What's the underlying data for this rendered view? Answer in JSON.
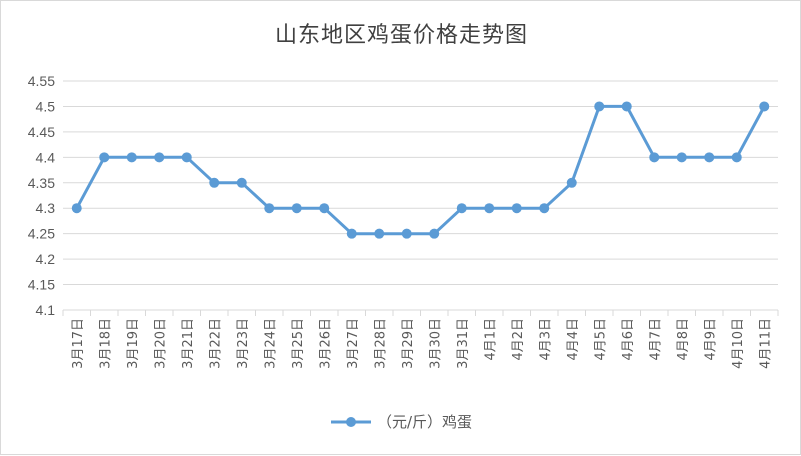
{
  "chart_data": {
    "type": "line",
    "title": "山东地区鸡蛋价格走势图",
    "categories": [
      "3月17日",
      "3月18日",
      "3月19日",
      "3月20日",
      "3月21日",
      "3月22日",
      "3月23日",
      "3月24日",
      "3月25日",
      "3月26日",
      "3月27日",
      "3月28日",
      "3月29日",
      "3月30日",
      "3月31日",
      "4月1日",
      "4月2日",
      "4月3日",
      "4月4日",
      "4月5日",
      "4月6日",
      "4月7日",
      "4月8日",
      "4月9日",
      "4月10日",
      "4月11日"
    ],
    "series": [
      {
        "name": "（元/斤）鸡蛋",
        "values": [
          4.3,
          4.4,
          4.4,
          4.4,
          4.4,
          4.35,
          4.35,
          4.3,
          4.3,
          4.3,
          4.25,
          4.25,
          4.25,
          4.25,
          4.3,
          4.3,
          4.3,
          4.3,
          4.35,
          4.5,
          4.5,
          4.4,
          4.4,
          4.4,
          4.4,
          4.5
        ]
      }
    ],
    "y_ticks": [
      "4.55",
      "4.5",
      "4.45",
      "4.4",
      "4.35",
      "4.3",
      "4.25",
      "4.2",
      "4.15",
      "4.1"
    ],
    "ylim": [
      4.1,
      4.55
    ],
    "grid": true,
    "legend_position": "bottom",
    "colors": {
      "line": "#5b9bd5",
      "grid": "#d9d9d9",
      "text": "#595959"
    }
  }
}
